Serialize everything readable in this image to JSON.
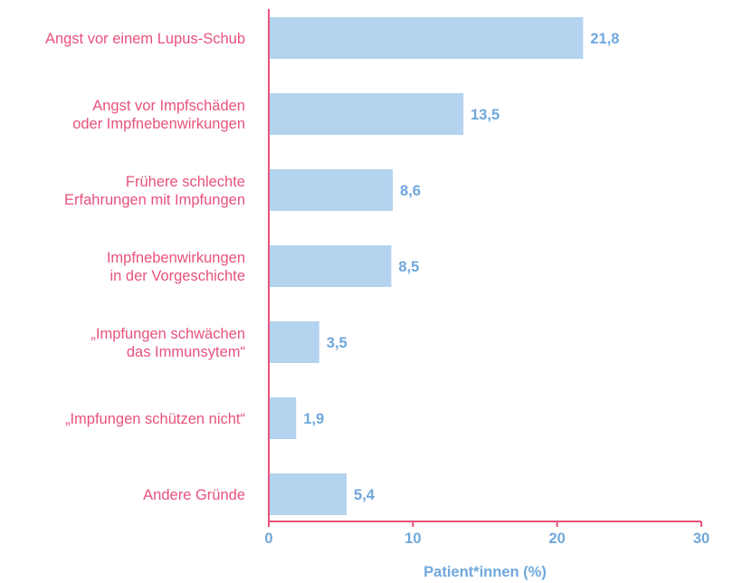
{
  "chart_data": {
    "type": "bar",
    "orientation": "horizontal",
    "categories": [
      [
        "Angst vor einem Lupus-Schub"
      ],
      [
        "Angst vor Impfschäden",
        "oder Impfnebenwirkungen"
      ],
      [
        "Frühere schlechte",
        "Erfahrungen mit Impfungen"
      ],
      [
        "Impfnebenwirkungen",
        "in der Vorgeschichte"
      ],
      [
        "„Impfungen schwächen",
        "das Immunsytem“"
      ],
      [
        "„Impfungen schützen nicht“"
      ],
      [
        "Andere Gründe"
      ]
    ],
    "values": [
      21.8,
      13.5,
      8.6,
      8.5,
      3.5,
      1.9,
      5.4
    ],
    "value_labels": [
      "21,8",
      "13,5",
      "8,6",
      "8,5",
      "3,5",
      "1,9",
      "5,4"
    ],
    "xlabel": "Patient*innen (%)",
    "xlim": [
      0,
      30
    ],
    "xticks": [
      0,
      10,
      20,
      30
    ],
    "grid": false,
    "colors": {
      "bar": "#b3d3ef",
      "axis": "#e8527c",
      "category_text": "#e8527c",
      "value_text": "#6fa8dc"
    }
  }
}
